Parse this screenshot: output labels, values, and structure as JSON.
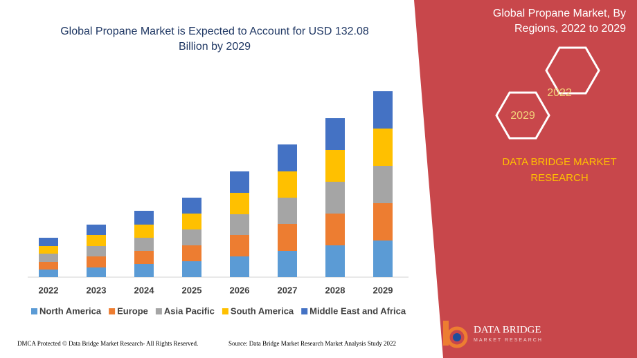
{
  "chart_data": {
    "type": "stacked_bar",
    "title": [
      "Global Propane Market is Expected to Account for USD 132.08",
      "Billion by 2029"
    ],
    "categories": [
      "2022",
      "2023",
      "2024",
      "2025",
      "2026",
      "2027",
      "2028",
      "2029"
    ],
    "series": [
      {
        "name": "North America",
        "color": "#5b9bd5",
        "values": [
          11,
          14,
          19,
          23,
          30,
          38,
          46,
          53
        ]
      },
      {
        "name": "Europe",
        "color": "#ed7d31",
        "values": [
          11,
          16,
          19,
          23,
          31,
          39,
          46,
          54
        ]
      },
      {
        "name": "Asia Pacific",
        "color": "#a5a5a5",
        "values": [
          12,
          15,
          19,
          23,
          30,
          38,
          46,
          54
        ]
      },
      {
        "name": "South America",
        "color": "#ffc000",
        "values": [
          11,
          16,
          19,
          23,
          31,
          38,
          46,
          54
        ]
      },
      {
        "name": "Middle East and Africa",
        "color": "#4472c4",
        "values": [
          12,
          15,
          20,
          23,
          31,
          39,
          46,
          54
        ]
      }
    ]
  },
  "panel": {
    "title": [
      "Global Propane Market, By",
      "Regions, 2022 to 2029"
    ],
    "hex_labels": [
      "2022",
      "2029"
    ],
    "brand": [
      "DATA BRIDGE MARKET",
      "RESEARCH"
    ]
  },
  "logo": {
    "text": "DATA BRIDGE",
    "subtext": "MARKET RESEARCH"
  },
  "footer": {
    "copyright": "DMCA Protected © Data Bridge Market Research- All Rights Reserved.",
    "source": "Source: Data Bridge Market Research Market Analysis Study 2022"
  }
}
